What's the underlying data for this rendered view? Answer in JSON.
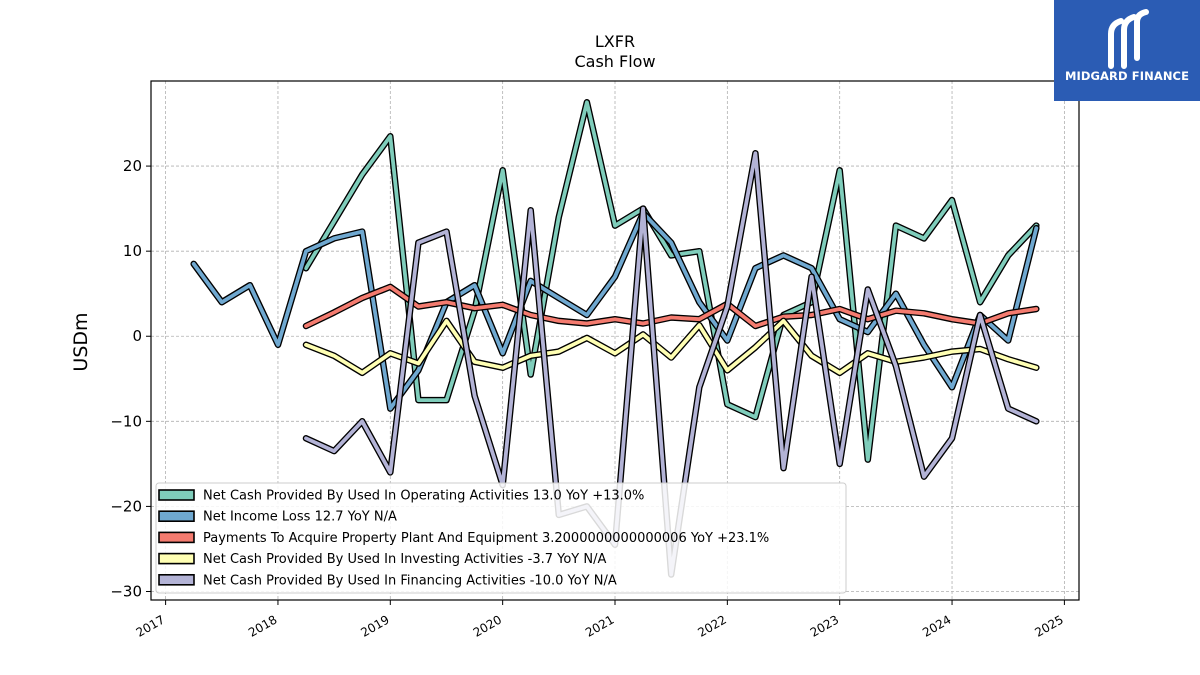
{
  "brand": {
    "name": "MIDGARD FINANCE",
    "color": "#2b5cb4",
    "icon": "midgard-logo-icon"
  },
  "chart_data": {
    "type": "line",
    "title": "LXFR",
    "subtitle": "Cash Flow",
    "ylabel": "USDm",
    "xlabel": "",
    "ylim": [
      -31,
      30
    ],
    "xlim": [
      2016.87,
      2025.13
    ],
    "yticks": [
      -30,
      -20,
      -10,
      0,
      10,
      20
    ],
    "xticks": [
      2017,
      2018,
      2019,
      2020,
      2021,
      2022,
      2023,
      2024,
      2025
    ],
    "grid": true,
    "legend_position": "lower-left",
    "series": [
      {
        "name": "Net Cash Provided By Used In Operating Activities",
        "legend": "Net Cash Provided By Used In Operating Activities  13.0 YoY +13.0%",
        "color": "#7fcdbb",
        "x": [
          2018.25,
          2018.5,
          2018.75,
          2019.0,
          2019.25,
          2019.5,
          2019.75,
          2020.0,
          2020.25,
          2020.5,
          2020.75,
          2021.0,
          2021.25,
          2021.5,
          2021.75,
          2022.0,
          2022.25,
          2022.5,
          2022.75,
          2023.0,
          2023.25,
          2023.5,
          2023.75,
          2024.0,
          2024.25,
          2024.5,
          2024.75
        ],
        "y": [
          8.0,
          13.5,
          19.0,
          23.5,
          -7.5,
          -7.5,
          3.0,
          19.5,
          -4.5,
          14.0,
          27.5,
          13.0,
          15.0,
          9.5,
          10.0,
          -8.0,
          -9.5,
          2.5,
          4.0,
          19.5,
          -14.5,
          13.0,
          11.5,
          16.0,
          4.0,
          9.5,
          13.0
        ]
      },
      {
        "name": "Net Income Loss",
        "legend": "Net Income Loss  12.7 YoY N/A",
        "color": "#6fa8d0",
        "x": [
          2017.25,
          2017.5,
          2017.75,
          2018.0,
          2018.25,
          2018.5,
          2018.75,
          2019.0,
          2019.25,
          2019.5,
          2019.75,
          2020.0,
          2020.25,
          2020.5,
          2020.75,
          2021.0,
          2021.25,
          2021.5,
          2021.75,
          2022.0,
          2022.25,
          2022.5,
          2022.75,
          2023.0,
          2023.25,
          2023.5,
          2023.75,
          2024.0,
          2024.25,
          2024.5,
          2024.75
        ],
        "y": [
          8.5,
          4.0,
          6.0,
          -1.0,
          10.0,
          11.5,
          12.3,
          -8.5,
          -4.0,
          4.0,
          6.0,
          -2.0,
          6.5,
          4.5,
          2.5,
          7.0,
          14.5,
          11.0,
          4.0,
          -0.5,
          8.0,
          9.5,
          8.0,
          2.0,
          0.5,
          5.0,
          -1.0,
          -6.0,
          2.5,
          -0.5,
          12.7
        ]
      },
      {
        "name": "Payments To Acquire Property Plant And Equipment",
        "legend": "Payments To Acquire Property Plant And Equipment  3.2000000000000006 YoY +23.1%",
        "color": "#f47b6f",
        "x": [
          2018.25,
          2018.5,
          2018.75,
          2019.0,
          2019.25,
          2019.5,
          2019.75,
          2020.0,
          2020.25,
          2020.5,
          2020.75,
          2021.0,
          2021.25,
          2021.5,
          2021.75,
          2022.0,
          2022.25,
          2022.5,
          2022.75,
          2023.0,
          2023.25,
          2023.5,
          2023.75,
          2024.0,
          2024.25,
          2024.5,
          2024.75
        ],
        "y": [
          1.2,
          2.8,
          4.5,
          5.8,
          3.5,
          4.0,
          3.3,
          3.7,
          2.5,
          1.8,
          1.5,
          2.0,
          1.5,
          2.2,
          2.0,
          3.8,
          1.2,
          2.3,
          2.5,
          3.2,
          2.0,
          3.0,
          2.7,
          2.0,
          1.5,
          2.7,
          3.2
        ]
      },
      {
        "name": "Net Cash Provided By Used In Investing Activities",
        "legend": "Net Cash Provided By Used In Investing Activities  -3.7 YoY N/A",
        "color": "#ffffb3",
        "x": [
          2018.25,
          2018.5,
          2018.75,
          2019.0,
          2019.25,
          2019.5,
          2019.75,
          2020.0,
          2020.25,
          2020.5,
          2020.75,
          2021.0,
          2021.25,
          2021.5,
          2021.75,
          2022.0,
          2022.25,
          2022.5,
          2022.75,
          2023.0,
          2023.25,
          2023.5,
          2023.75,
          2024.0,
          2024.25,
          2024.5,
          2024.75
        ],
        "y": [
          -1.0,
          -2.3,
          -4.3,
          -2.0,
          -3.2,
          1.8,
          -3.0,
          -3.7,
          -2.3,
          -1.8,
          -0.2,
          -2.0,
          0.2,
          -2.5,
          1.3,
          -4.0,
          -1.3,
          1.8,
          -2.3,
          -4.3,
          -2.0,
          -3.0,
          -2.5,
          -1.8,
          -1.5,
          -2.7,
          -3.7
        ]
      },
      {
        "name": "Net Cash Provided By Used In Financing Activities",
        "legend": "Net Cash Provided By Used In Financing Activities  -10.0 YoY N/A",
        "color": "#b3b3d6",
        "x": [
          2018.25,
          2018.5,
          2018.75,
          2019.0,
          2019.25,
          2019.5,
          2019.75,
          2020.0,
          2020.25,
          2020.5,
          2020.75,
          2021.0,
          2021.25,
          2021.5,
          2021.75,
          2022.0,
          2022.25,
          2022.5,
          2022.75,
          2023.0,
          2023.25,
          2023.5,
          2023.75,
          2024.0,
          2024.25,
          2024.5,
          2024.75
        ],
        "y": [
          -12.0,
          -13.5,
          -10.0,
          -16.0,
          11.0,
          12.3,
          -7.0,
          -17.5,
          14.8,
          -21.0,
          -20.0,
          -24.5,
          15.0,
          -28.0,
          -6.0,
          3.5,
          21.5,
          -15.5,
          7.0,
          -15.0,
          5.5,
          -3.5,
          -16.5,
          -12.0,
          2.5,
          -8.5,
          -10.0
        ]
      }
    ]
  }
}
